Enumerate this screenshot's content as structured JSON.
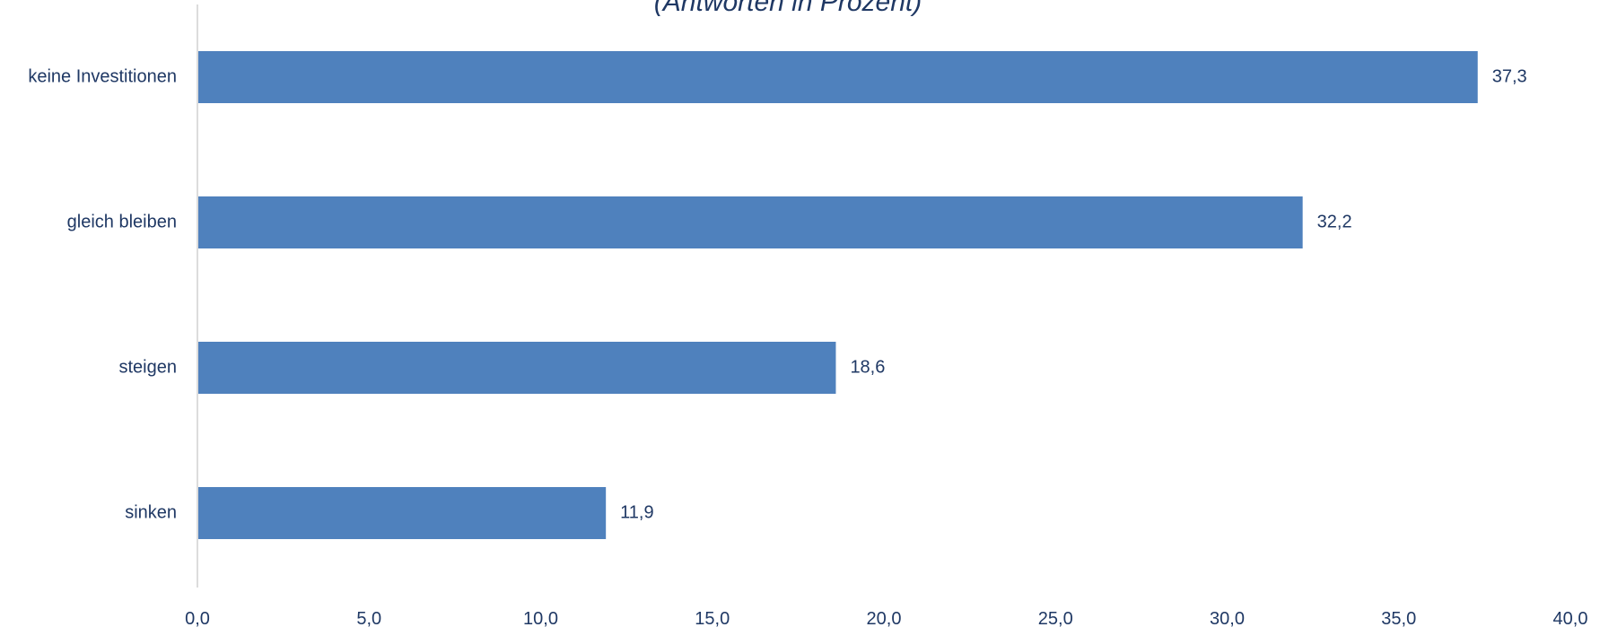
{
  "chart_data": {
    "type": "bar",
    "orientation": "horizontal",
    "subtitle": "(Antworten in Prozent)",
    "categories": [
      "keine Investitionen",
      "gleich bleiben",
      "steigen",
      "sinken"
    ],
    "values": [
      37.3,
      32.2,
      18.6,
      11.9
    ],
    "value_labels": [
      "37,3",
      "32,2",
      "18,6",
      "11,9"
    ],
    "xlim": [
      0,
      40
    ],
    "x_ticks": [
      0,
      5,
      10,
      15,
      20,
      25,
      30,
      35,
      40
    ],
    "x_tick_labels": [
      "0,0",
      "5,0",
      "10,0",
      "15,0",
      "20,0",
      "25,0",
      "30,0",
      "35,0",
      "40,0"
    ],
    "xlabel": "",
    "ylabel": "",
    "grid": false,
    "legend": "none"
  },
  "colors": {
    "bar": "#4f81bd",
    "text": "#1f3864",
    "axis": "#d0d0d0"
  }
}
